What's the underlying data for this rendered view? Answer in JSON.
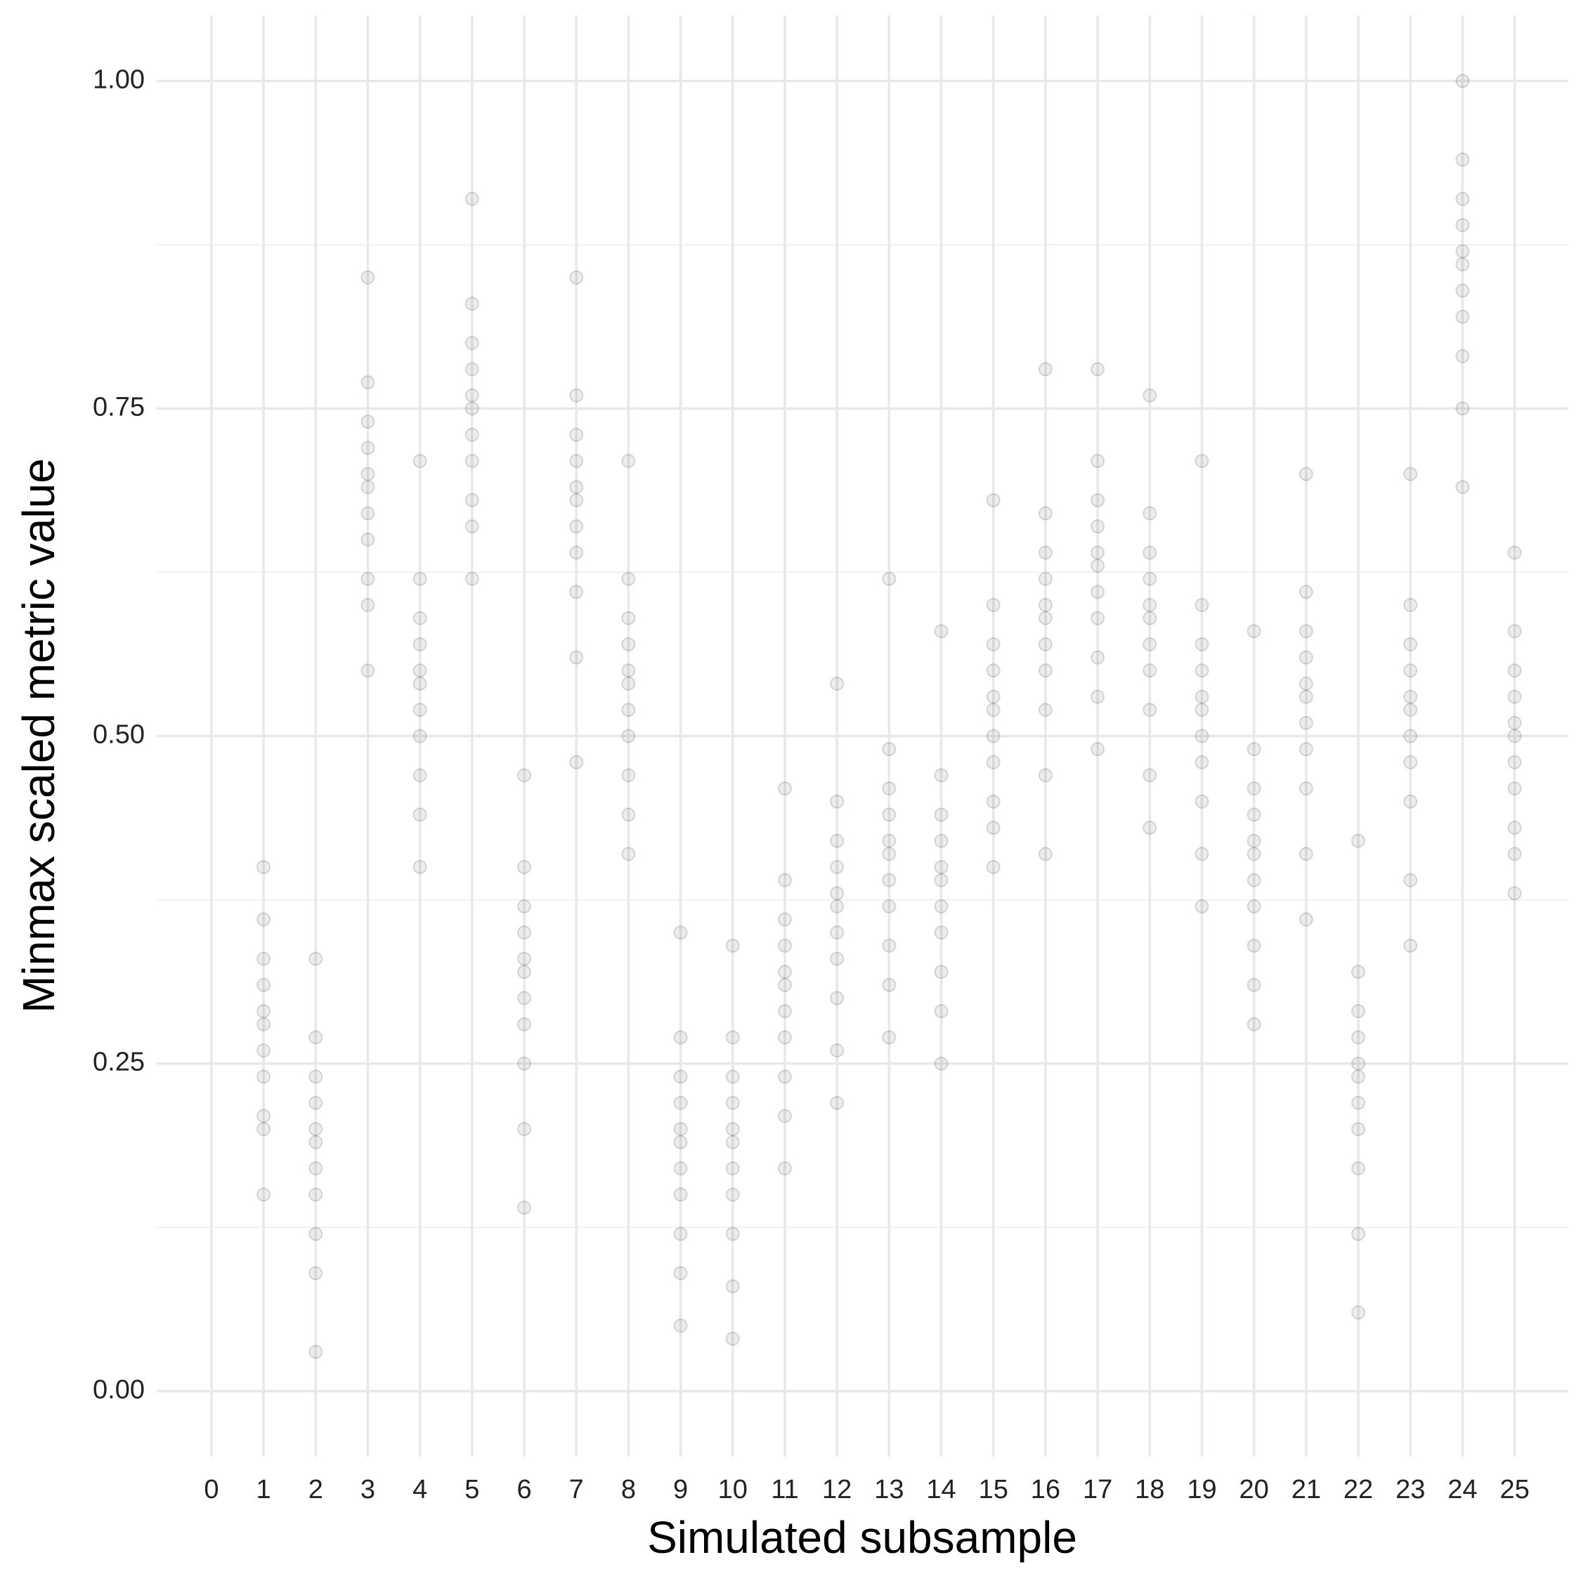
{
  "chart_data": {
    "type": "strip",
    "xlabel": "Simulated subsample",
    "ylabel": "Minmax scaled metric value",
    "xlim": [
      -1.05,
      26.03
    ],
    "ylim": [
      -0.05,
      1.05
    ],
    "xticks": [
      0,
      1,
      2,
      3,
      4,
      5,
      6,
      7,
      8,
      9,
      10,
      11,
      12,
      13,
      14,
      15,
      16,
      17,
      18,
      19,
      20,
      21,
      22,
      23,
      24,
      25
    ],
    "yticks": [
      {
        "value": 0,
        "label": "0.00"
      },
      {
        "value": 0.25,
        "label": "0.25"
      },
      {
        "value": 0.5,
        "label": "0.50"
      },
      {
        "value": 0.75,
        "label": "0.75"
      },
      {
        "value": 1,
        "label": "1.00"
      }
    ],
    "yminorticks": [
      0.125,
      0.375,
      0.625,
      0.875
    ],
    "grid": true,
    "color": "#000000",
    "alpha": 0.07,
    "points": [
      {
        "x": 1,
        "values": [
          0.15,
          0.2,
          0.21,
          0.24,
          0.26,
          0.28,
          0.29,
          0.31,
          0.33,
          0.36,
          0.4
        ]
      },
      {
        "x": 2,
        "values": [
          0.03,
          0.09,
          0.12,
          0.15,
          0.17,
          0.19,
          0.2,
          0.22,
          0.24,
          0.27,
          0.33
        ]
      },
      {
        "x": 3,
        "values": [
          0.55,
          0.6,
          0.62,
          0.65,
          0.67,
          0.69,
          0.7,
          0.72,
          0.74,
          0.77,
          0.85
        ]
      },
      {
        "x": 4,
        "values": [
          0.4,
          0.44,
          0.47,
          0.5,
          0.52,
          0.54,
          0.55,
          0.57,
          0.59,
          0.62,
          0.71
        ]
      },
      {
        "x": 5,
        "values": [
          0.62,
          0.66,
          0.68,
          0.71,
          0.73,
          0.75,
          0.76,
          0.78,
          0.8,
          0.83,
          0.91
        ]
      },
      {
        "x": 6,
        "values": [
          0.14,
          0.2,
          0.25,
          0.28,
          0.3,
          0.32,
          0.33,
          0.35,
          0.37,
          0.4,
          0.47
        ]
      },
      {
        "x": 7,
        "values": [
          0.48,
          0.56,
          0.61,
          0.64,
          0.66,
          0.68,
          0.69,
          0.71,
          0.73,
          0.76,
          0.85
        ]
      },
      {
        "x": 8,
        "values": [
          0.41,
          0.44,
          0.47,
          0.5,
          0.52,
          0.54,
          0.55,
          0.57,
          0.59,
          0.62,
          0.71
        ]
      },
      {
        "x": 9,
        "values": [
          0.05,
          0.09,
          0.12,
          0.15,
          0.17,
          0.19,
          0.2,
          0.22,
          0.24,
          0.27,
          0.35
        ]
      },
      {
        "x": 10,
        "values": [
          0.04,
          0.08,
          0.12,
          0.15,
          0.17,
          0.19,
          0.2,
          0.22,
          0.24,
          0.27,
          0.34
        ]
      },
      {
        "x": 11,
        "values": [
          0.17,
          0.21,
          0.24,
          0.27,
          0.29,
          0.31,
          0.32,
          0.34,
          0.36,
          0.39,
          0.46
        ]
      },
      {
        "x": 12,
        "values": [
          0.22,
          0.26,
          0.3,
          0.33,
          0.35,
          0.37,
          0.38,
          0.4,
          0.42,
          0.45,
          0.54
        ]
      },
      {
        "x": 13,
        "values": [
          0.27,
          0.31,
          0.34,
          0.37,
          0.39,
          0.41,
          0.42,
          0.44,
          0.46,
          0.49,
          0.62
        ]
      },
      {
        "x": 14,
        "values": [
          0.25,
          0.29,
          0.32,
          0.35,
          0.37,
          0.39,
          0.4,
          0.42,
          0.44,
          0.47,
          0.58
        ]
      },
      {
        "x": 15,
        "values": [
          0.4,
          0.43,
          0.45,
          0.48,
          0.5,
          0.52,
          0.53,
          0.55,
          0.57,
          0.6,
          0.68
        ]
      },
      {
        "x": 16,
        "values": [
          0.41,
          0.47,
          0.52,
          0.55,
          0.57,
          0.59,
          0.6,
          0.62,
          0.64,
          0.67,
          0.78
        ]
      },
      {
        "x": 17,
        "values": [
          0.49,
          0.53,
          0.56,
          0.59,
          0.61,
          0.63,
          0.64,
          0.66,
          0.68,
          0.71,
          0.78
        ]
      },
      {
        "x": 18,
        "values": [
          0.43,
          0.47,
          0.52,
          0.55,
          0.57,
          0.59,
          0.6,
          0.62,
          0.64,
          0.67,
          0.76
        ]
      },
      {
        "x": 19,
        "values": [
          0.37,
          0.41,
          0.45,
          0.48,
          0.5,
          0.52,
          0.53,
          0.55,
          0.57,
          0.6,
          0.71
        ]
      },
      {
        "x": 20,
        "values": [
          0.28,
          0.31,
          0.34,
          0.37,
          0.39,
          0.41,
          0.42,
          0.44,
          0.46,
          0.49,
          0.58
        ]
      },
      {
        "x": 21,
        "values": [
          0.36,
          0.41,
          0.46,
          0.49,
          0.51,
          0.53,
          0.54,
          0.56,
          0.58,
          0.61,
          0.7
        ]
      },
      {
        "x": 22,
        "values": [
          0.06,
          0.12,
          0.17,
          0.2,
          0.22,
          0.24,
          0.25,
          0.27,
          0.29,
          0.32,
          0.42
        ]
      },
      {
        "x": 23,
        "values": [
          0.34,
          0.39,
          0.45,
          0.48,
          0.5,
          0.52,
          0.53,
          0.55,
          0.57,
          0.6,
          0.7
        ]
      },
      {
        "x": 24,
        "values": [
          0.69,
          0.75,
          0.79,
          0.82,
          0.84,
          0.86,
          0.87,
          0.89,
          0.91,
          0.94,
          1.0
        ]
      },
      {
        "x": 25,
        "values": [
          0.38,
          0.41,
          0.43,
          0.46,
          0.48,
          0.5,
          0.51,
          0.53,
          0.55,
          0.58,
          0.64
        ]
      }
    ]
  }
}
